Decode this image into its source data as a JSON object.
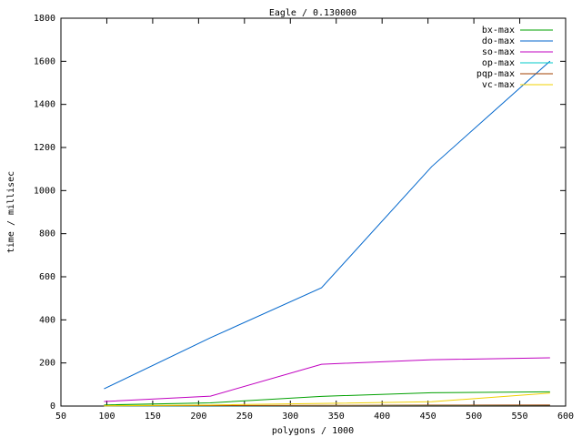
{
  "chart_data": {
    "type": "line",
    "title": "Eagle / 0.130000",
    "x_label": "polygons / 1000",
    "y_label": "time / millisec",
    "x": [
      97,
      213,
      334,
      454,
      583
    ],
    "series": [
      {
        "name": "bx-max",
        "color": "#00a000",
        "values": [
          5,
          15,
          45,
          62,
          66
        ]
      },
      {
        "name": "do-max",
        "color": "#0066cc",
        "values": [
          80,
          317,
          549,
          1111,
          1601
        ]
      },
      {
        "name": "so-max",
        "color": "#c000c0",
        "values": [
          21,
          46,
          194,
          215,
          224
        ]
      },
      {
        "name": "op-max",
        "color": "#00c8c8",
        "values": [
          0,
          1,
          2,
          3,
          4
        ]
      },
      {
        "name": "pqp-max",
        "color": "#a04000",
        "values": [
          1,
          2,
          3,
          4,
          5
        ]
      },
      {
        "name": "vc-max",
        "color": "#f0d000",
        "values": [
          1,
          5,
          12,
          20,
          60
        ]
      }
    ],
    "xlim": [
      50,
      600
    ],
    "xticks": [
      50,
      100,
      150,
      200,
      250,
      300,
      350,
      400,
      450,
      500,
      550,
      600
    ],
    "ylim": [
      0,
      1800
    ],
    "yticks": [
      0,
      200,
      400,
      600,
      800,
      1000,
      1200,
      1400,
      1600,
      1800
    ],
    "legend": "top-right",
    "grid": false
  }
}
